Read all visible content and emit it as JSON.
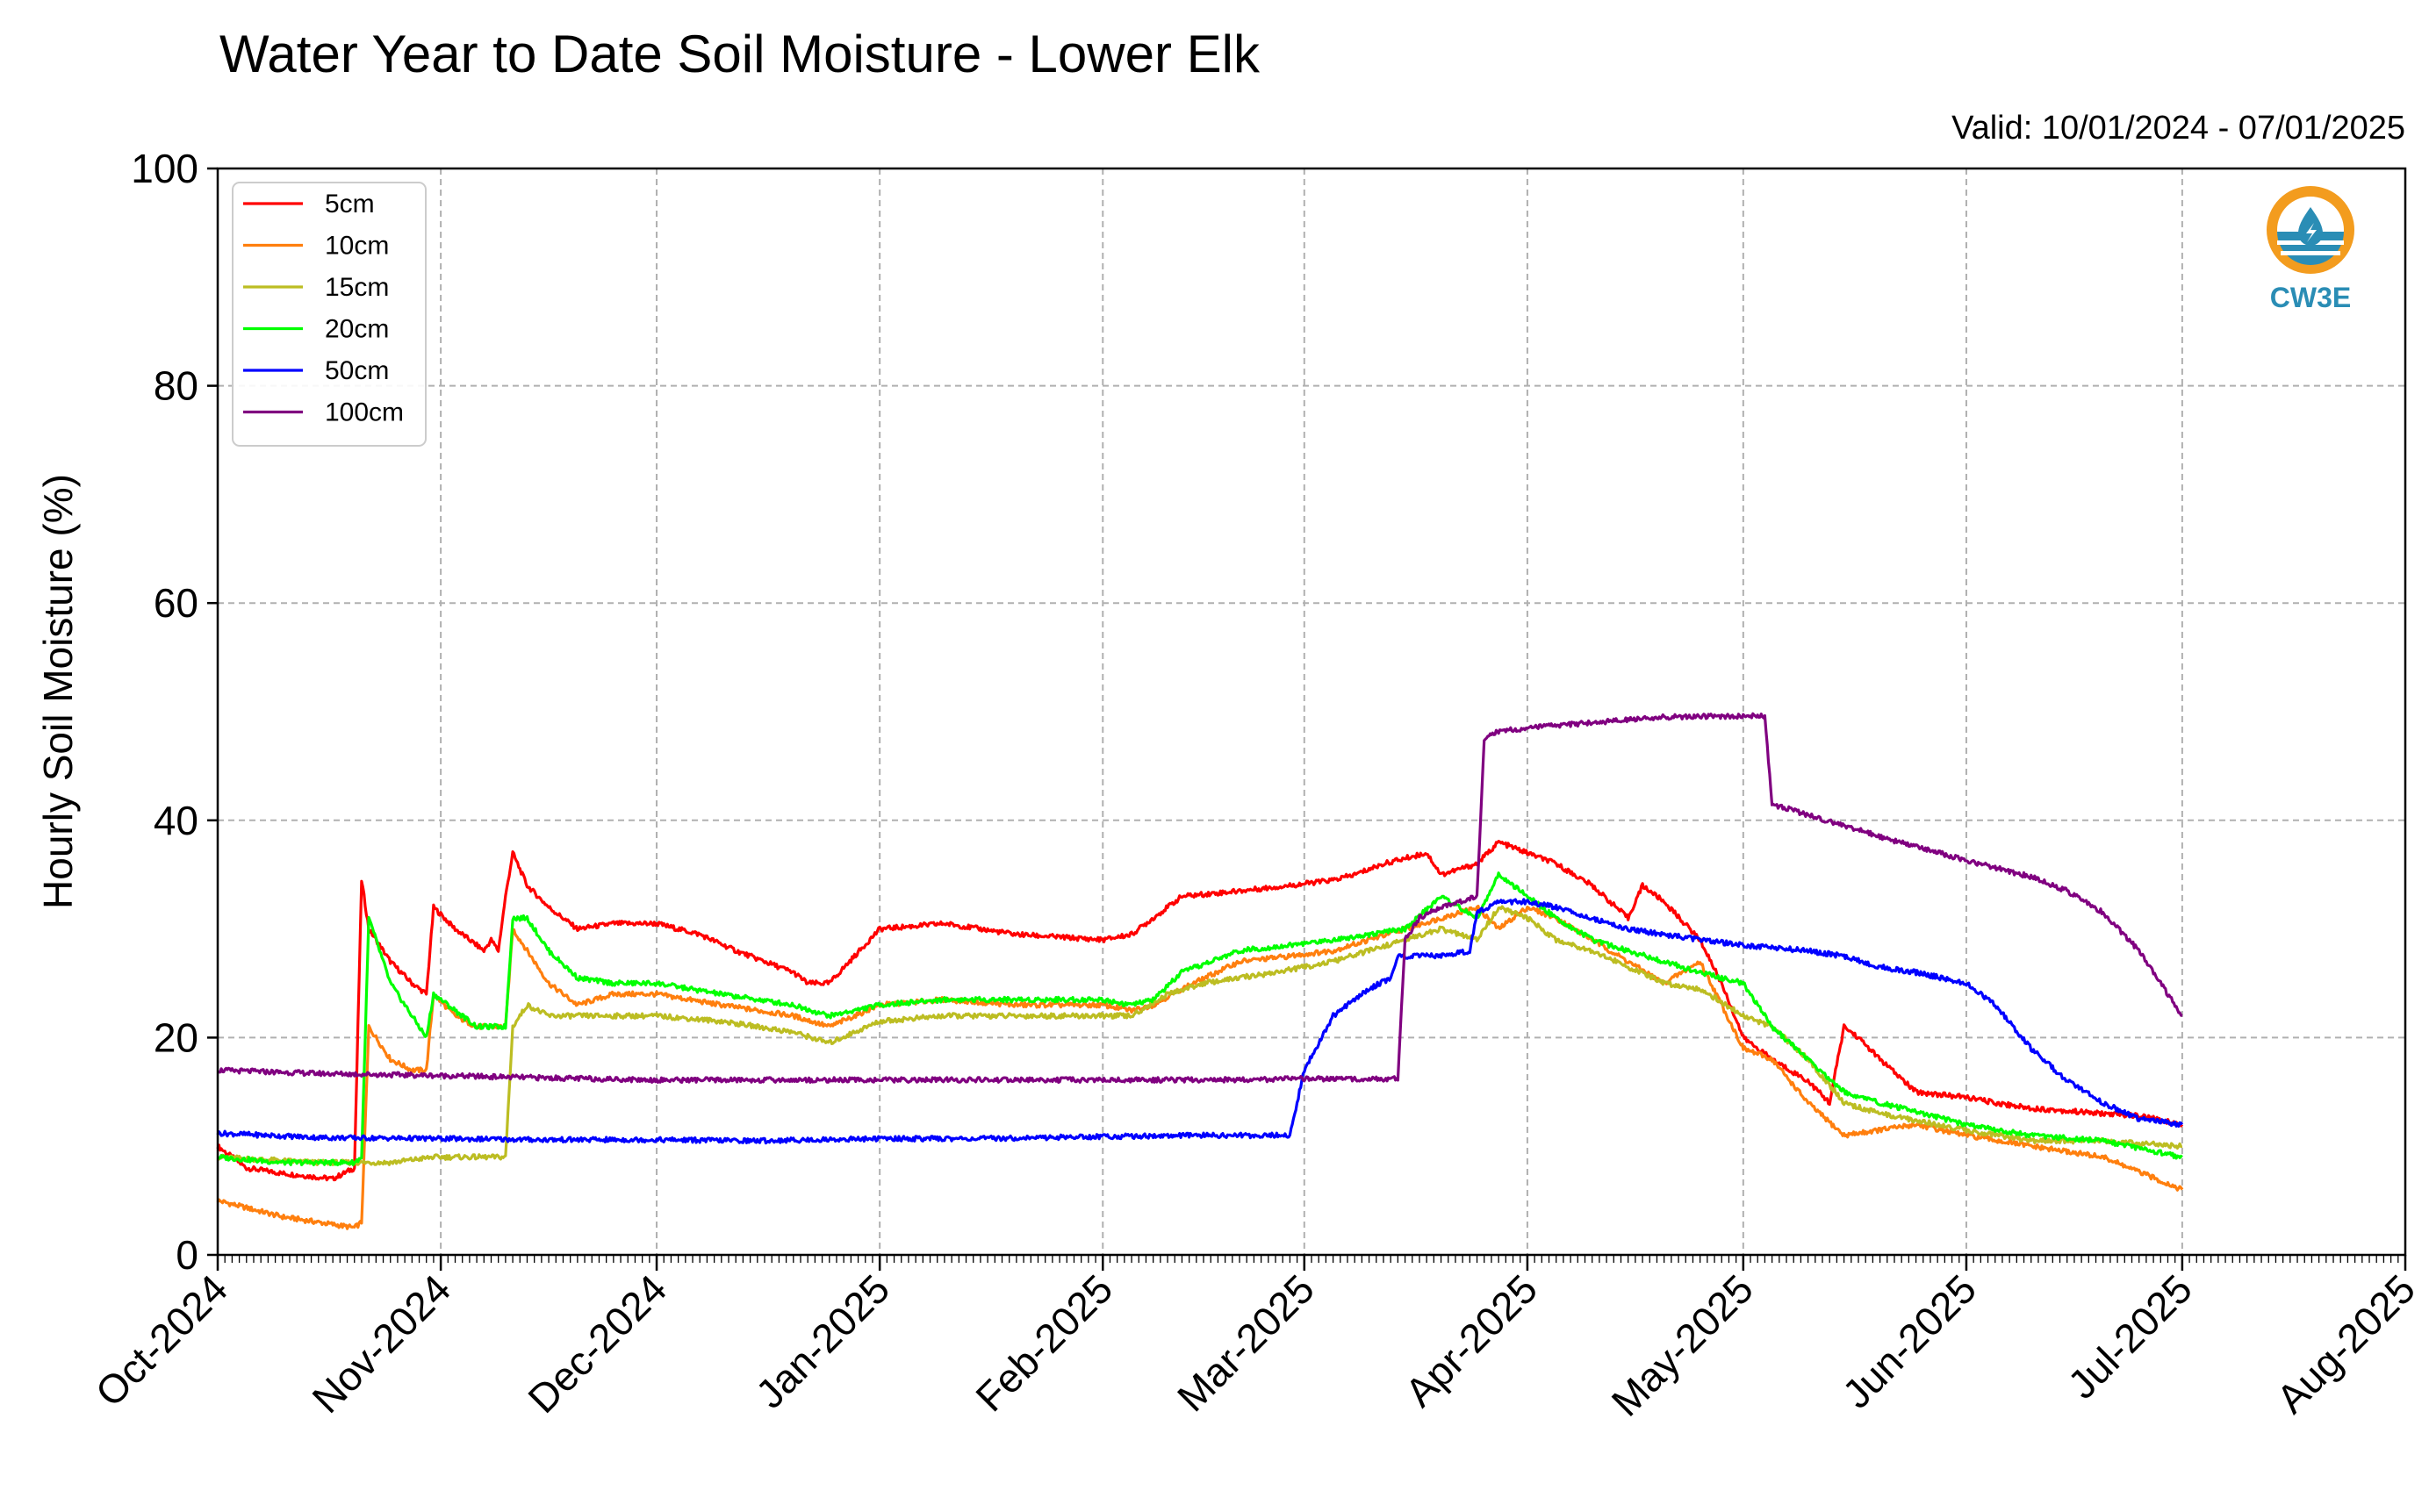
{
  "chart_data": {
    "type": "line",
    "title": "Water Year to Date Soil Moisture - Lower Elk",
    "valid_label": "Valid: 10/01/2024 - 07/01/2025",
    "ylabel": "Hourly Soil Moisture (%)",
    "xlabel": "",
    "ylim": [
      0,
      100
    ],
    "yticks": [
      0,
      20,
      40,
      60,
      80,
      100
    ],
    "xlim": [
      "2024-10-01",
      "2025-08-01"
    ],
    "xticks": [
      {
        "date": "2024-10-01",
        "label": "Oct-2024"
      },
      {
        "date": "2024-11-01",
        "label": "Nov-2024"
      },
      {
        "date": "2024-12-01",
        "label": "Dec-2024"
      },
      {
        "date": "2025-01-01",
        "label": "Jan-2025"
      },
      {
        "date": "2025-02-01",
        "label": "Feb-2025"
      },
      {
        "date": "2025-03-01",
        "label": "Mar-2025"
      },
      {
        "date": "2025-04-01",
        "label": "Apr-2025"
      },
      {
        "date": "2025-05-01",
        "label": "May-2025"
      },
      {
        "date": "2025-06-01",
        "label": "Jun-2025"
      },
      {
        "date": "2025-07-01",
        "label": "Jul-2025"
      },
      {
        "date": "2025-08-01",
        "label": "Aug-2025"
      }
    ],
    "grid": true,
    "legend_position": "top-left",
    "logo_text": "CW3E",
    "series": [
      {
        "name": "5cm",
        "color": "#ff0000",
        "x": [
          "2024-10-01",
          "2024-10-05",
          "2024-10-10",
          "2024-10-17",
          "2024-10-20",
          "2024-10-21",
          "2024-10-22",
          "2024-10-25",
          "2024-10-28",
          "2024-10-30",
          "2024-10-31",
          "2024-11-03",
          "2024-11-06",
          "2024-11-07",
          "2024-11-08",
          "2024-11-09",
          "2024-11-10",
          "2024-11-11",
          "2024-11-13",
          "2024-11-16",
          "2024-11-20",
          "2024-11-25",
          "2024-12-01",
          "2024-12-07",
          "2024-12-12",
          "2024-12-16",
          "2024-12-20",
          "2024-12-22",
          "2024-12-25",
          "2025-01-01",
          "2025-01-10",
          "2025-01-20",
          "2025-02-01",
          "2025-02-05",
          "2025-02-08",
          "2025-02-12",
          "2025-02-20",
          "2025-02-27",
          "2025-03-05",
          "2025-03-08",
          "2025-03-12",
          "2025-03-18",
          "2025-03-20",
          "2025-03-25",
          "2025-03-28",
          "2025-04-01",
          "2025-04-05",
          "2025-04-10",
          "2025-04-15",
          "2025-04-17",
          "2025-04-20",
          "2025-04-25",
          "2025-04-28",
          "2025-05-01",
          "2025-05-05",
          "2025-05-10",
          "2025-05-13",
          "2025-05-15",
          "2025-05-17",
          "2025-05-20",
          "2025-05-25",
          "2025-06-01",
          "2025-06-05",
          "2025-06-10",
          "2025-06-20",
          "2025-06-25",
          "2025-07-01"
        ],
        "values": [
          10,
          8,
          7.5,
          7,
          8,
          34.5,
          30,
          27,
          25,
          24,
          32,
          30,
          28.5,
          28,
          29,
          28,
          33,
          37,
          34,
          32,
          30,
          30.5,
          30.5,
          29.5,
          28,
          27,
          26,
          25,
          25,
          30,
          30.5,
          29.5,
          29,
          29.5,
          31,
          33,
          33.5,
          34,
          34.5,
          35,
          36,
          37,
          35,
          36,
          38,
          37,
          36,
          34,
          31,
          34,
          32.5,
          29,
          25,
          20,
          18,
          16,
          14,
          21,
          20,
          18,
          15,
          14.5,
          14,
          13.5,
          13,
          12.8,
          12
        ]
      },
      {
        "name": "10cm",
        "color": "#ff7f0e",
        "x": [
          "2024-10-01",
          "2024-10-10",
          "2024-10-15",
          "2024-10-20",
          "2024-10-21",
          "2024-10-22",
          "2024-10-25",
          "2024-10-28",
          "2024-10-30",
          "2024-10-31",
          "2024-11-03",
          "2024-11-06",
          "2024-11-10",
          "2024-11-11",
          "2024-11-13",
          "2024-11-16",
          "2024-11-20",
          "2024-11-25",
          "2024-12-01",
          "2024-12-10",
          "2024-12-20",
          "2024-12-25",
          "2025-01-01",
          "2025-01-10",
          "2025-01-20",
          "2025-02-01",
          "2025-02-05",
          "2025-02-08",
          "2025-02-12",
          "2025-02-20",
          "2025-02-27",
          "2025-03-05",
          "2025-03-10",
          "2025-03-15",
          "2025-03-20",
          "2025-03-25",
          "2025-03-28",
          "2025-04-01",
          "2025-04-05",
          "2025-04-10",
          "2025-04-15",
          "2025-04-20",
          "2025-04-25",
          "2025-05-01",
          "2025-05-05",
          "2025-05-10",
          "2025-05-15",
          "2025-05-20",
          "2025-05-25",
          "2025-06-01",
          "2025-06-10",
          "2025-06-20",
          "2025-07-01"
        ],
        "values": [
          5,
          3.5,
          3,
          2.5,
          3,
          21,
          18,
          17,
          17,
          24,
          22,
          21,
          21,
          30,
          28,
          25,
          23,
          24,
          24,
          23,
          22,
          21,
          23,
          23.5,
          23,
          23,
          22.5,
          23,
          24.5,
          27,
          27.5,
          28,
          29,
          30,
          31,
          32,
          30,
          32,
          31,
          29,
          27,
          25,
          27,
          19,
          18,
          14,
          11,
          11.5,
          12,
          11,
          10,
          9,
          6
        ]
      },
      {
        "name": "15cm",
        "color": "#bcbd22",
        "x": [
          "2024-10-01",
          "2024-10-15",
          "2024-10-20",
          "2024-10-25",
          "2024-10-31",
          "2024-11-05",
          "2024-11-10",
          "2024-11-11",
          "2024-11-13",
          "2024-11-16",
          "2024-11-20",
          "2024-11-25",
          "2024-12-01",
          "2024-12-10",
          "2024-12-20",
          "2024-12-25",
          "2025-01-01",
          "2025-01-10",
          "2025-01-20",
          "2025-02-01",
          "2025-02-05",
          "2025-02-10",
          "2025-02-15",
          "2025-02-25",
          "2025-03-05",
          "2025-03-10",
          "2025-03-15",
          "2025-03-20",
          "2025-03-25",
          "2025-03-28",
          "2025-04-01",
          "2025-04-05",
          "2025-04-10",
          "2025-04-15",
          "2025-04-20",
          "2025-04-25",
          "2025-05-01",
          "2025-05-05",
          "2025-05-10",
          "2025-05-15",
          "2025-05-20",
          "2025-06-01",
          "2025-06-10",
          "2025-06-20",
          "2025-07-01"
        ],
        "values": [
          9,
          8.5,
          8.5,
          8.5,
          9,
          9,
          9,
          21,
          23,
          22,
          22,
          22,
          22,
          21.5,
          20.5,
          19.5,
          21.5,
          22,
          22,
          22,
          22,
          24,
          25,
          26,
          27,
          28,
          29,
          30,
          29,
          32,
          31,
          29,
          28,
          26.5,
          25,
          24.5,
          22,
          21,
          18,
          14,
          13,
          11.5,
          10.5,
          10.5,
          10
        ]
      },
      {
        "name": "20cm",
        "color": "#00ff00",
        "x": [
          "2024-10-01",
          "2024-10-10",
          "2024-10-20",
          "2024-10-21",
          "2024-10-22",
          "2024-10-25",
          "2024-10-28",
          "2024-10-30",
          "2024-10-31",
          "2024-11-03",
          "2024-11-06",
          "2024-11-10",
          "2024-11-11",
          "2024-11-13",
          "2024-11-16",
          "2024-11-20",
          "2024-11-25",
          "2024-12-01",
          "2024-12-10",
          "2024-12-20",
          "2024-12-25",
          "2025-01-01",
          "2025-01-10",
          "2025-01-20",
          "2025-02-01",
          "2025-02-05",
          "2025-02-08",
          "2025-02-12",
          "2025-02-20",
          "2025-02-27",
          "2025-03-05",
          "2025-03-10",
          "2025-03-15",
          "2025-03-20",
          "2025-03-25",
          "2025-03-28",
          "2025-04-01",
          "2025-04-05",
          "2025-04-10",
          "2025-04-15",
          "2025-04-20",
          "2025-04-25",
          "2025-05-01",
          "2025-05-05",
          "2025-05-10",
          "2025-05-15",
          "2025-05-20",
          "2025-06-01",
          "2025-06-10",
          "2025-06-20",
          "2025-07-01"
        ],
        "values": [
          9,
          8.5,
          8.5,
          9,
          31,
          25,
          22,
          20,
          24,
          22.5,
          21,
          21,
          31,
          31,
          28,
          25.5,
          25,
          25,
          24,
          23,
          22,
          23,
          23.5,
          23.5,
          23.5,
          23,
          23.5,
          26,
          28,
          28.5,
          29,
          29.5,
          30,
          33,
          31,
          35,
          33,
          31,
          29,
          28,
          27,
          26,
          25,
          21,
          18,
          15,
          14,
          12,
          11,
          10.5,
          9
        ]
      },
      {
        "name": "50cm",
        "color": "#0000ff",
        "x": [
          "2024-10-01",
          "2024-10-15",
          "2024-11-01",
          "2024-11-15",
          "2024-12-01",
          "2024-12-15",
          "2025-01-01",
          "2025-01-15",
          "2025-02-01",
          "2025-02-15",
          "2025-02-27",
          "2025-03-01",
          "2025-03-05",
          "2025-03-10",
          "2025-03-13",
          "2025-03-14",
          "2025-03-20",
          "2025-03-24",
          "2025-03-25",
          "2025-03-28",
          "2025-04-01",
          "2025-04-05",
          "2025-04-10",
          "2025-04-15",
          "2025-04-20",
          "2025-04-25",
          "2025-05-01",
          "2025-05-10",
          "2025-05-15",
          "2025-05-20",
          "2025-05-25",
          "2025-06-01",
          "2025-06-05",
          "2025-06-10",
          "2025-06-15",
          "2025-06-20",
          "2025-06-25",
          "2025-07-01"
        ],
        "values": [
          11.2,
          10.8,
          10.7,
          10.6,
          10.6,
          10.5,
          10.7,
          10.7,
          10.9,
          11,
          11,
          17,
          22,
          24.5,
          25.5,
          27.5,
          27.5,
          28,
          31.5,
          32.5,
          32.5,
          32,
          31,
          30,
          29.5,
          29,
          28.5,
          28,
          27.5,
          26.5,
          26,
          25,
          23,
          19,
          16,
          14,
          12.5,
          12
        ]
      },
      {
        "name": "100cm",
        "color": "#800080",
        "x": [
          "2024-10-01",
          "2024-10-15",
          "2024-11-01",
          "2024-11-15",
          "2024-12-01",
          "2024-12-15",
          "2025-01-01",
          "2025-01-15",
          "2025-02-01",
          "2025-02-15",
          "2025-03-01",
          "2025-03-14",
          "2025-03-15",
          "2025-03-17",
          "2025-03-20",
          "2025-03-25",
          "2025-03-26",
          "2025-03-28",
          "2025-04-01",
          "2025-04-10",
          "2025-04-20",
          "2025-05-01",
          "2025-05-04",
          "2025-05-05",
          "2025-05-10",
          "2025-05-20",
          "2025-06-01",
          "2025-06-10",
          "2025-06-15",
          "2025-06-20",
          "2025-06-25",
          "2025-07-01"
        ],
        "values": [
          17,
          16.7,
          16.5,
          16.3,
          16.1,
          16.1,
          16.1,
          16.1,
          16.1,
          16.1,
          16.2,
          16.2,
          29,
          31,
          32,
          33,
          47.5,
          48.2,
          48.5,
          49,
          49.5,
          49.6,
          49.6,
          41.5,
          40.5,
          38.5,
          36.3,
          34.8,
          33.5,
          31.5,
          28,
          22
        ]
      }
    ]
  }
}
